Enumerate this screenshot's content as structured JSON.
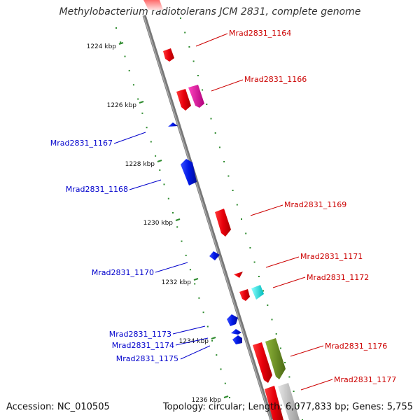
{
  "title": "Methylobacterium radiotolerans JCM 2831, complete genome",
  "accession": "Accession: NC_010505",
  "genome_stats": "Topology: circular; Length: 6,077,833 bp; Genes: 5,755",
  "colors": {
    "forward_gene": "#e8000b",
    "reverse_gene": "#0018e6",
    "highlight_magenta": "#e0119a",
    "highlight_cyan": "#00dede",
    "highlight_olive": "#6b8e23",
    "backbone": "#808080",
    "tick_dots": "#2e8b2e",
    "label_forward": "#cc0000",
    "label_reverse": "#0000cc"
  },
  "position_labels": [
    "1224 kbp",
    "1226 kbp",
    "1228 kbp",
    "1230 kbp",
    "1232 kbp",
    "1234 kbp",
    "1236 kbp"
  ],
  "forward_labels": [
    "Mrad2831_1164",
    "Mrad2831_1166",
    "Mrad2831_1169",
    "Mrad2831_1171",
    "Mrad2831_1172",
    "Mrad2831_1176",
    "Mrad2831_1177"
  ],
  "reverse_labels": [
    "Mrad2831_1167",
    "Mrad2831_1168",
    "Mrad2831_1170",
    "Mrad2831_1173",
    "Mrad2831_1174",
    "Mrad2831_1175"
  ]
}
